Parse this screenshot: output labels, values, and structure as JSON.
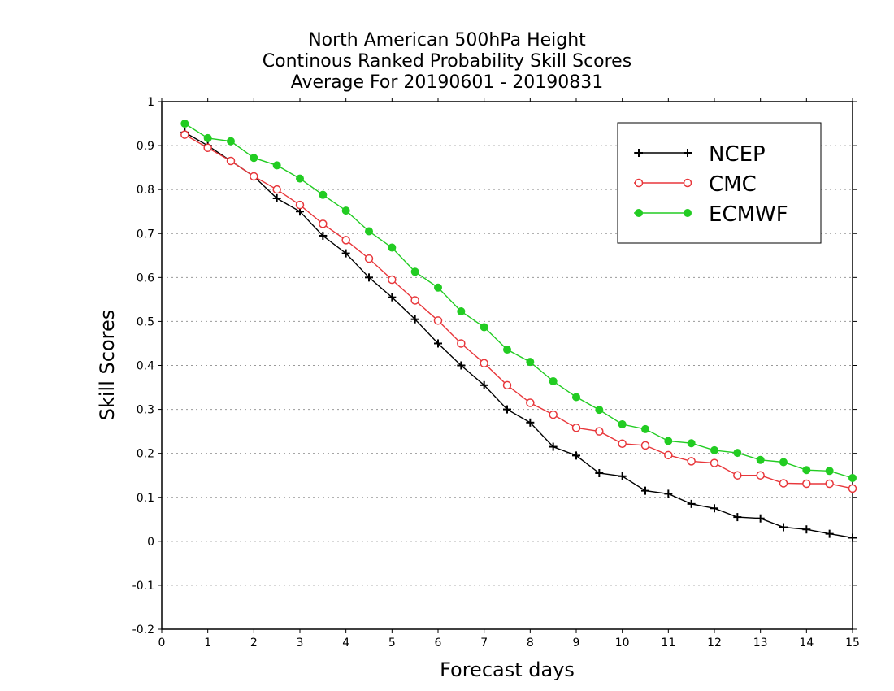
{
  "chart_data": {
    "type": "line",
    "title": [
      "North American 500hPa Height",
      "Continous Ranked Probability Skill Scores",
      "Average For 20190601 - 20190831"
    ],
    "xlabel": "Forecast days",
    "ylabel": "Skill Scores",
    "xlim": [
      0,
      15
    ],
    "ylim": [
      -0.2,
      1
    ],
    "xticks": [
      "0",
      "1",
      "2",
      "3",
      "4",
      "5",
      "6",
      "7",
      "8",
      "9",
      "10",
      "11",
      "12",
      "13",
      "14",
      "15"
    ],
    "yticks": [
      "-0.2",
      "-0.1",
      "0",
      "0.1",
      "0.2",
      "0.3",
      "0.4",
      "0.5",
      "0.6",
      "0.7",
      "0.8",
      "0.9",
      "1"
    ],
    "grid": "horizontal dotted",
    "legend_position": "top-right",
    "x": [
      0.5,
      1,
      1.5,
      2,
      2.5,
      3,
      3.5,
      4,
      4.5,
      5,
      5.5,
      6,
      6.5,
      7,
      7.5,
      8,
      8.5,
      9,
      9.5,
      10,
      10.5,
      11,
      11.5,
      12,
      12.5,
      13,
      13.5,
      14,
      14.5,
      15
    ],
    "series": [
      {
        "name": "NCEP",
        "color": "#000000",
        "marker": "plus",
        "values": [
          0.93,
          0.9,
          0.865,
          0.83,
          0.78,
          0.75,
          0.695,
          0.655,
          0.6,
          0.555,
          0.505,
          0.45,
          0.4,
          0.355,
          0.3,
          0.27,
          0.215,
          0.195,
          0.155,
          0.148,
          0.115,
          0.108,
          0.085,
          0.075,
          0.055,
          0.052,
          0.032,
          0.027,
          0.017,
          0.008
        ]
      },
      {
        "name": "CMC",
        "color": "#e8373b",
        "marker": "open-circle",
        "values": [
          0.925,
          0.895,
          0.865,
          0.83,
          0.8,
          0.765,
          0.722,
          0.685,
          0.643,
          0.595,
          0.548,
          0.502,
          0.45,
          0.405,
          0.355,
          0.315,
          0.288,
          0.258,
          0.25,
          0.222,
          0.218,
          0.196,
          0.182,
          0.178,
          0.15,
          0.15,
          0.132,
          0.131,
          0.131,
          0.12
        ]
      },
      {
        "name": "ECMWF",
        "color": "#22cc22",
        "marker": "filled-circle",
        "values": [
          0.95,
          0.917,
          0.91,
          0.872,
          0.855,
          0.825,
          0.788,
          0.752,
          0.705,
          0.668,
          0.613,
          0.577,
          0.523,
          0.487,
          0.436,
          0.408,
          0.364,
          0.328,
          0.299,
          0.266,
          0.255,
          0.228,
          0.223,
          0.207,
          0.201,
          0.185,
          0.18,
          0.162,
          0.16,
          0.144
        ]
      }
    ]
  }
}
